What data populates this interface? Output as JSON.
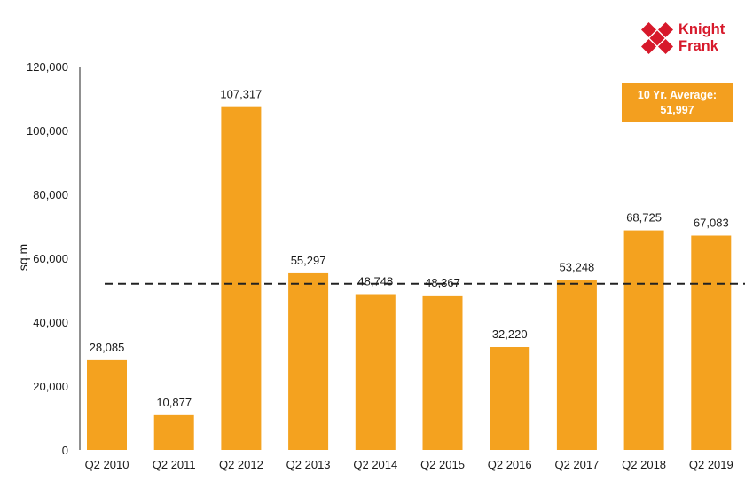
{
  "brand": {
    "line1": "Knight",
    "line2": "Frank",
    "color": "#d7192b"
  },
  "average_box": {
    "line1": "10 Yr. Average:",
    "line2": "51,997",
    "color": "#f39f1f"
  },
  "colors": {
    "bar": "#f4a21f",
    "axis": "#222222",
    "average_line": "#222222"
  },
  "chart_data": {
    "type": "bar",
    "categories": [
      "Q2 2010",
      "Q2 2011",
      "Q2 2012",
      "Q2 2013",
      "Q2 2014",
      "Q2 2015",
      "Q2 2016",
      "Q2 2017",
      "Q2 2018",
      "Q2 2019"
    ],
    "values": [
      28085,
      10877,
      107317,
      55297,
      48748,
      48367,
      32220,
      53248,
      68725,
      67083
    ],
    "data_labels": [
      "28,085",
      "10,877",
      "107,317",
      "55,297",
      "48,748",
      "48,367",
      "32,220",
      "53,248",
      "68,725",
      "67,083"
    ],
    "ylabel": "sq.m",
    "xlabel": "",
    "ylim": [
      0,
      120000
    ],
    "yticks": [
      0,
      20000,
      40000,
      60000,
      80000,
      100000,
      120000
    ],
    "ytick_labels": [
      "0",
      "20,000",
      "40,000",
      "60,000",
      "80,000",
      "100,000",
      "120,000"
    ],
    "reference_line": {
      "value": 51997,
      "style": "dashed"
    },
    "grid": false,
    "legend": "none"
  }
}
